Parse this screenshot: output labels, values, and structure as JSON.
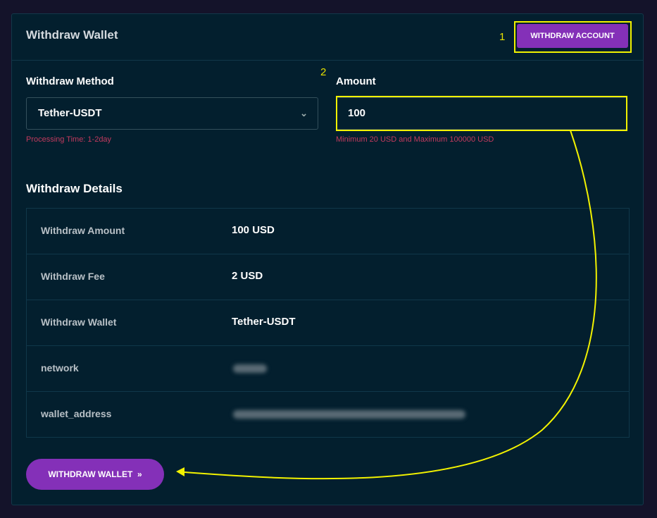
{
  "header": {
    "title": "Withdraw Wallet",
    "account_button": "WITHDRAW ACCOUNT"
  },
  "annotations": {
    "step1": "1",
    "step2": "2",
    "highlight_color": "#f2f200"
  },
  "form": {
    "method_label": "Withdraw Method",
    "method_value": "Tether-USDT",
    "method_help": "Processing Time: 1-2day",
    "amount_label": "Amount",
    "amount_value": "100",
    "amount_help": "Minimum 20 USD and Maximum 100000 USD"
  },
  "details": {
    "title": "Withdraw Details",
    "rows": [
      {
        "key": "Withdraw Amount",
        "value": "100 USD"
      },
      {
        "key": "Withdraw Fee",
        "value": "2 USD"
      },
      {
        "key": "Withdraw Wallet",
        "value": "Tether-USDT"
      },
      {
        "key": "network",
        "value": null
      },
      {
        "key": "wallet_address",
        "value": null
      }
    ]
  },
  "submit_button": "WITHDRAW WALLET",
  "colors": {
    "accent": "#8430b8",
    "error": "#c23a5e",
    "card": "#031f2e"
  }
}
